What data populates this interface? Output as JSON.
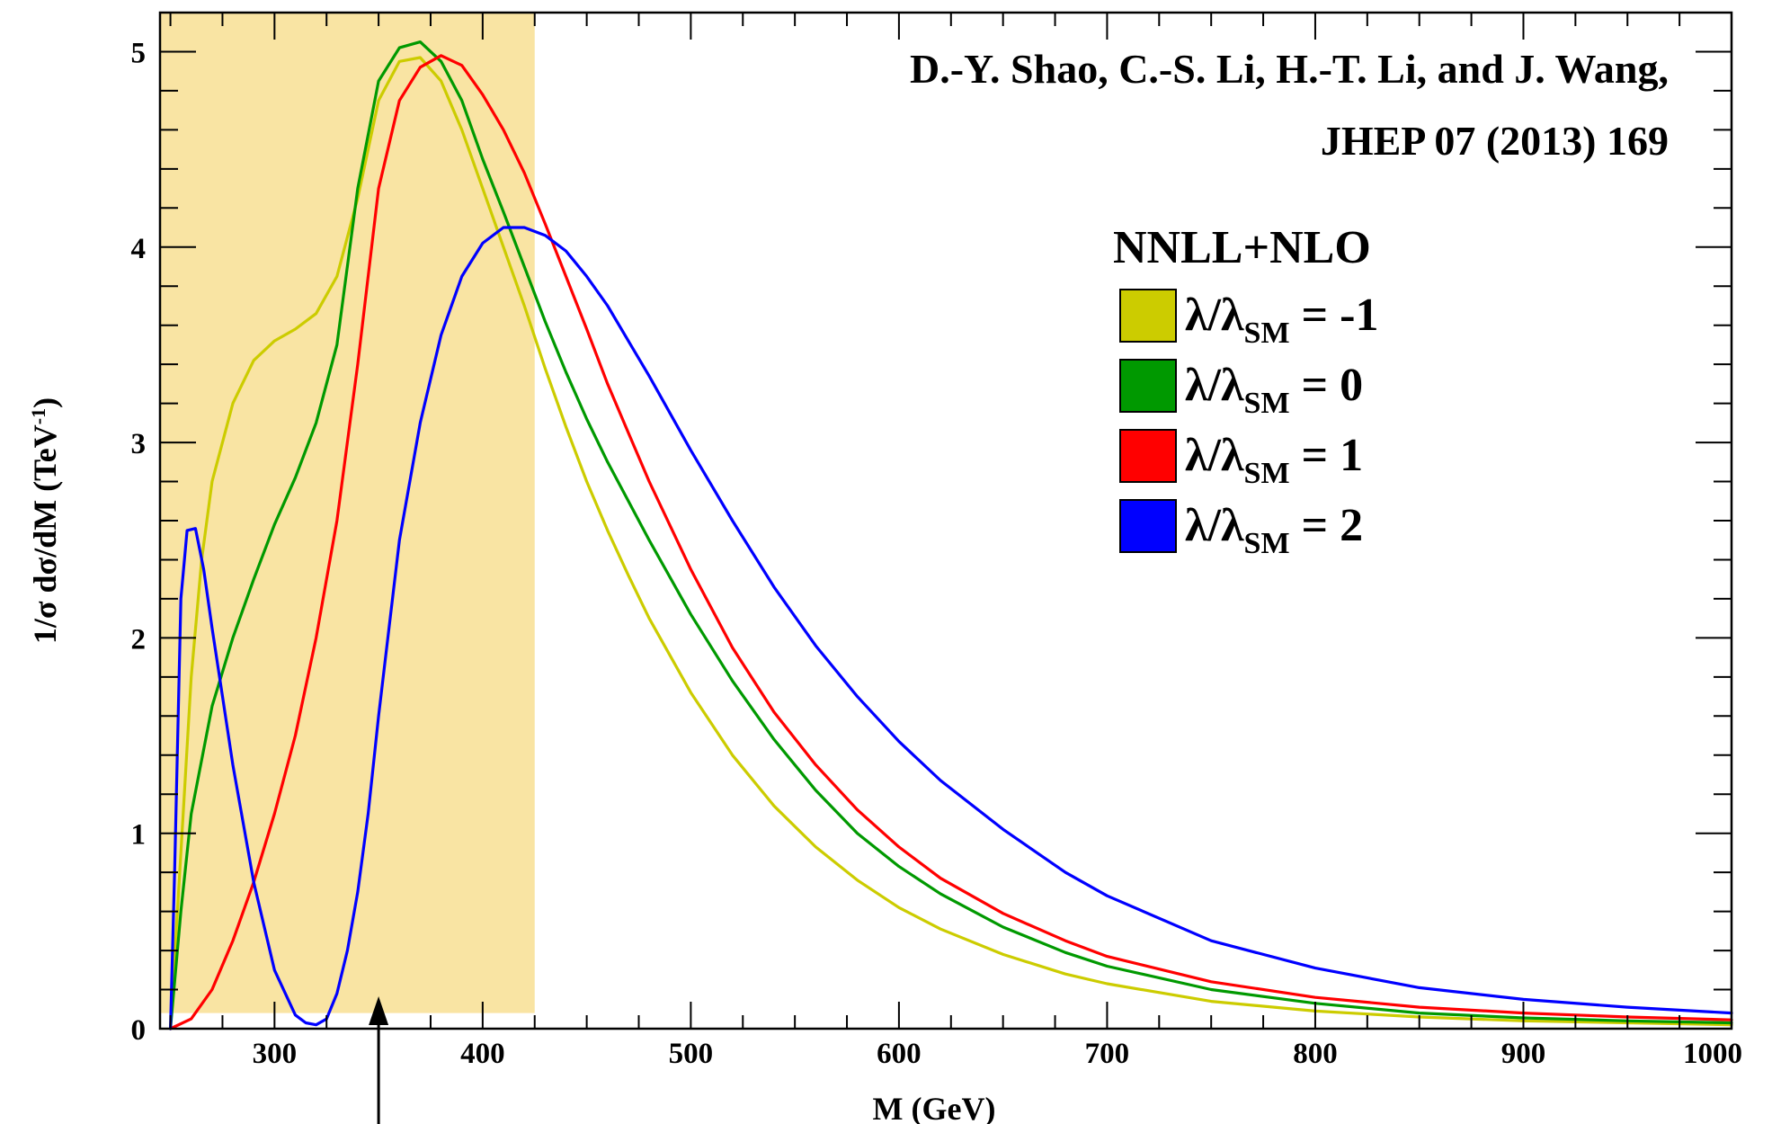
{
  "chart_data": {
    "type": "line",
    "annotation": [
      "D.-Y. Shao, C.-S. Li, H.-T. Li, and J. Wang,",
      "JHEP 07 (2013) 169"
    ],
    "legend_title": "NNLL+NLO",
    "xlabel": "M (GeV)",
    "ylabel": "1/σ dσ/dM (TeV",
    "ylabel_sup": "-1",
    "ylabel_end": ")",
    "xlim": [
      245,
      1000
    ],
    "ylim": [
      0,
      5.2
    ],
    "x_ticks": [
      300,
      400,
      500,
      600,
      700,
      800,
      900,
      1000
    ],
    "y_ticks": [
      0,
      1,
      2,
      3,
      4,
      5
    ],
    "x_tick_labels": [
      "300",
      "400",
      "500",
      "600",
      "700",
      "800",
      "900",
      "1000"
    ],
    "y_tick_labels": [
      "0",
      "1",
      "2",
      "3",
      "4",
      "5"
    ],
    "shaded_region": {
      "x": [
        245,
        425
      ],
      "y": [
        0.08,
        5.2
      ],
      "color": "#f9e4a3"
    },
    "arrow_x": 350,
    "series": [
      {
        "name": "λ/λSM = -1",
        "label_main": "λ/λ",
        "label_sub": "SM",
        "label_tail": " = -1",
        "color": "#cccc00",
        "x": [
          250,
          255,
          260,
          265,
          270,
          280,
          290,
          300,
          310,
          320,
          330,
          340,
          350,
          360,
          370,
          380,
          390,
          400,
          410,
          420,
          430,
          440,
          450,
          460,
          470,
          480,
          500,
          520,
          540,
          560,
          580,
          600,
          620,
          650,
          680,
          700,
          750,
          800,
          850,
          900,
          950,
          1000
        ],
        "y": [
          0,
          0.9,
          1.8,
          2.4,
          2.8,
          3.2,
          3.42,
          3.52,
          3.58,
          3.66,
          3.85,
          4.25,
          4.75,
          4.95,
          4.97,
          4.85,
          4.6,
          4.3,
          4.0,
          3.7,
          3.38,
          3.08,
          2.8,
          2.55,
          2.32,
          2.1,
          1.72,
          1.4,
          1.14,
          0.93,
          0.76,
          0.62,
          0.51,
          0.38,
          0.28,
          0.23,
          0.14,
          0.09,
          0.06,
          0.04,
          0.03,
          0.02
        ]
      },
      {
        "name": "λ/λSM = 0",
        "label_main": "λ/λ",
        "label_sub": "SM",
        "label_tail": " = 0",
        "color": "#009900",
        "x": [
          250,
          255,
          260,
          270,
          280,
          290,
          300,
          310,
          320,
          330,
          340,
          350,
          360,
          370,
          380,
          390,
          400,
          410,
          420,
          430,
          440,
          450,
          460,
          480,
          500,
          520,
          540,
          560,
          580,
          600,
          620,
          650,
          680,
          700,
          750,
          800,
          850,
          900,
          950,
          1000
        ],
        "y": [
          0,
          0.6,
          1.1,
          1.65,
          2.0,
          2.3,
          2.58,
          2.82,
          3.1,
          3.5,
          4.3,
          4.85,
          5.02,
          5.05,
          4.95,
          4.75,
          4.45,
          4.18,
          3.9,
          3.62,
          3.36,
          3.12,
          2.9,
          2.5,
          2.12,
          1.78,
          1.48,
          1.22,
          1.0,
          0.83,
          0.69,
          0.52,
          0.39,
          0.32,
          0.2,
          0.13,
          0.08,
          0.055,
          0.04,
          0.03
        ]
      },
      {
        "name": "λ/λSM = 1",
        "label_main": "λ/λ",
        "label_sub": "SM",
        "label_tail": " = 1",
        "color": "#ff0000",
        "x": [
          250,
          260,
          270,
          280,
          290,
          300,
          310,
          320,
          330,
          340,
          350,
          360,
          370,
          380,
          390,
          400,
          410,
          420,
          430,
          440,
          450,
          460,
          470,
          480,
          500,
          520,
          540,
          560,
          580,
          600,
          620,
          650,
          680,
          700,
          750,
          800,
          850,
          900,
          950,
          1000
        ],
        "y": [
          0,
          0.05,
          0.2,
          0.45,
          0.75,
          1.1,
          1.5,
          2.0,
          2.6,
          3.4,
          4.3,
          4.75,
          4.92,
          4.98,
          4.93,
          4.78,
          4.6,
          4.38,
          4.12,
          3.85,
          3.58,
          3.3,
          3.05,
          2.8,
          2.35,
          1.95,
          1.62,
          1.35,
          1.12,
          0.93,
          0.77,
          0.59,
          0.45,
          0.37,
          0.24,
          0.16,
          0.11,
          0.08,
          0.06,
          0.045
        ]
      },
      {
        "name": "λ/λSM = 2",
        "label_main": "λ/λ",
        "label_sub": "SM",
        "label_tail": " = 2",
        "color": "#0000ff",
        "x": [
          250,
          252,
          255,
          258,
          262,
          266,
          270,
          275,
          280,
          290,
          300,
          310,
          315,
          320,
          325,
          330,
          335,
          340,
          345,
          350,
          360,
          370,
          380,
          390,
          400,
          410,
          420,
          430,
          440,
          450,
          460,
          470,
          480,
          500,
          520,
          540,
          560,
          580,
          600,
          620,
          650,
          680,
          700,
          750,
          800,
          850,
          900,
          950,
          1000
        ],
        "y": [
          0,
          0.8,
          2.2,
          2.55,
          2.56,
          2.35,
          2.05,
          1.7,
          1.35,
          0.75,
          0.3,
          0.07,
          0.03,
          0.02,
          0.05,
          0.18,
          0.4,
          0.7,
          1.1,
          1.6,
          2.5,
          3.1,
          3.55,
          3.85,
          4.02,
          4.1,
          4.1,
          4.06,
          3.98,
          3.85,
          3.7,
          3.52,
          3.34,
          2.96,
          2.6,
          2.26,
          1.96,
          1.7,
          1.47,
          1.27,
          1.02,
          0.8,
          0.68,
          0.45,
          0.31,
          0.21,
          0.15,
          0.11,
          0.08
        ]
      }
    ]
  }
}
